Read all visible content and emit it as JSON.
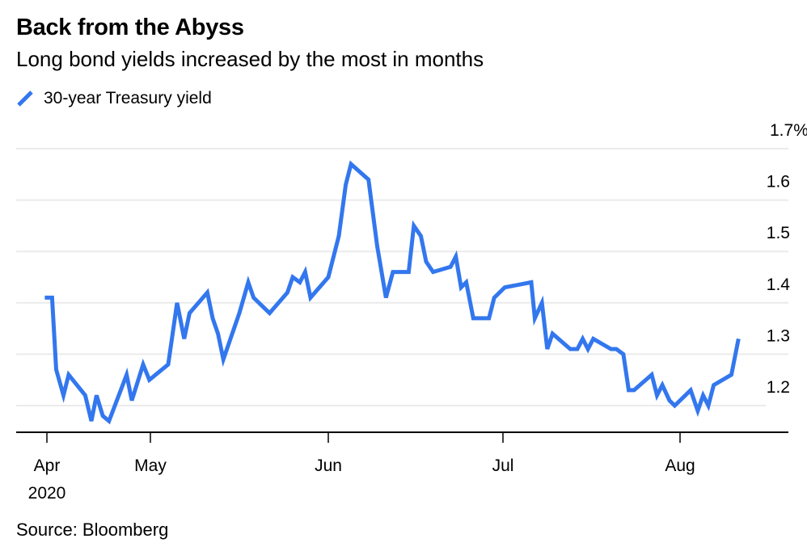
{
  "header": {
    "title": "Back from the Abyss",
    "subtitle": "Long bond yields increased by the most in months"
  },
  "legend": {
    "items": [
      {
        "label": "30-year Treasury yield",
        "color": "#3377ee",
        "icon": "line-swatch-icon"
      }
    ]
  },
  "footer": {
    "source": "Source: Bloomberg"
  },
  "chart_data": {
    "type": "line",
    "title": "Back from the Abyss",
    "subtitle": "Long bond yields increased by the most in months",
    "xlabel": "",
    "ylabel": "",
    "x_units": "months since Apr 1, 2020 (0 = Apr, 1 = May, 2 = Jun, 3 = Jul, 4 = Aug)",
    "x_ticks": [
      {
        "pos": 0,
        "label": "Apr",
        "sublabel": "2020"
      },
      {
        "pos": 1,
        "label": "May"
      },
      {
        "pos": 2,
        "label": "Jun"
      },
      {
        "pos": 3,
        "label": "Jul"
      },
      {
        "pos": 4,
        "label": "Aug"
      }
    ],
    "y_ticks": [
      {
        "value": 1.2,
        "label": "1.2"
      },
      {
        "value": 1.3,
        "label": "1.3"
      },
      {
        "value": 1.4,
        "label": "1.4"
      },
      {
        "value": 1.5,
        "label": "1.5"
      },
      {
        "value": 1.6,
        "label": "1.6"
      },
      {
        "value": 1.7,
        "label": "1.7%"
      }
    ],
    "ylim": [
      1.15,
      1.7
    ],
    "grid": true,
    "legend_position": "top-left",
    "series": [
      {
        "name": "30-year Treasury yield",
        "color": "#3377ee",
        "x": [
          -0.02,
          0.05,
          0.09,
          0.16,
          0.21,
          0.37,
          0.43,
          0.48,
          0.54,
          0.6,
          0.77,
          0.82,
          0.93,
          0.99,
          1.1,
          1.15,
          1.19,
          1.22,
          1.32,
          1.35,
          1.38,
          1.41,
          1.5,
          1.55,
          1.58,
          1.64,
          1.67,
          1.77,
          1.8,
          1.84,
          1.87,
          1.9,
          2.0,
          2.03,
          2.06,
          2.1,
          2.13,
          2.23,
          2.28,
          2.33,
          2.37,
          2.46,
          2.49,
          2.53,
          2.56,
          2.6,
          2.7,
          2.73,
          2.76,
          2.79,
          2.83,
          2.92,
          2.95,
          3.01,
          3.16,
          3.18,
          3.22,
          3.25,
          3.28,
          3.38,
          3.42,
          3.45,
          3.48,
          3.51,
          3.61,
          3.64,
          3.68,
          3.71,
          3.74,
          3.84,
          3.87,
          3.9,
          3.94,
          3.97,
          4.06,
          4.1,
          4.13,
          4.16,
          4.19,
          4.29,
          4.33
        ],
        "values": [
          1.41,
          1.41,
          1.27,
          1.22,
          1.26,
          1.22,
          1.17,
          1.22,
          1.18,
          1.17,
          1.26,
          1.21,
          1.28,
          1.25,
          1.28,
          1.4,
          1.33,
          1.38,
          1.42,
          1.37,
          1.34,
          1.29,
          1.38,
          1.44,
          1.41,
          1.39,
          1.38,
          1.42,
          1.45,
          1.44,
          1.46,
          1.41,
          1.45,
          1.49,
          1.53,
          1.63,
          1.67,
          1.64,
          1.51,
          1.41,
          1.46,
          1.46,
          1.55,
          1.53,
          1.48,
          1.46,
          1.47,
          1.49,
          1.43,
          1.44,
          1.37,
          1.37,
          1.41,
          1.43,
          1.44,
          1.37,
          1.4,
          1.31,
          1.34,
          1.31,
          1.31,
          1.33,
          1.31,
          1.33,
          1.31,
          1.31,
          1.3,
          1.23,
          1.23,
          1.26,
          1.22,
          1.24,
          1.21,
          1.2,
          1.23,
          1.19,
          1.22,
          1.2,
          1.24,
          1.26,
          1.33
        ]
      }
    ]
  }
}
